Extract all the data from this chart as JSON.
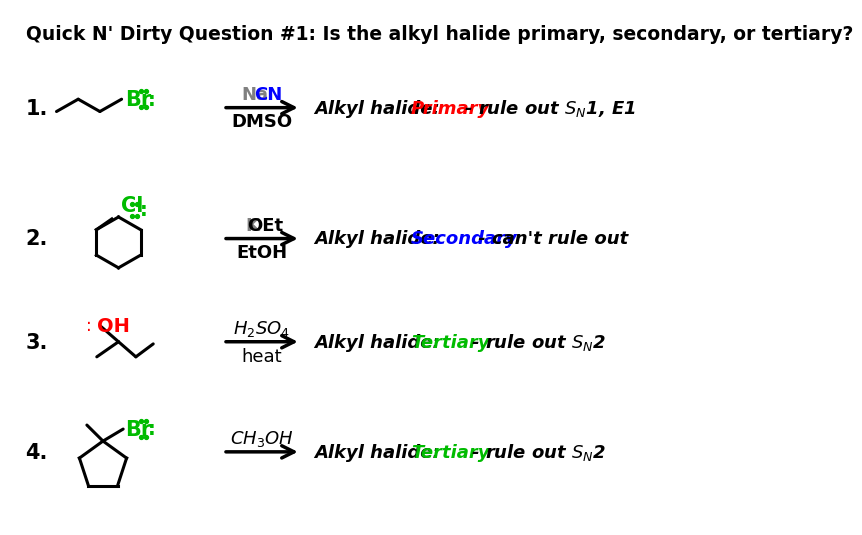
{
  "title": "Quick N' Dirty Question #1: Is the alkyl halide primary, secondary, or tertiary?",
  "title_fontsize": 13.5,
  "background_color": "#ffffff",
  "rows": [
    {
      "number": "1.",
      "reagent_above_parts": [
        {
          "text": "Na",
          "color": "#808080"
        },
        {
          "text": "CN",
          "color": "#0000ff"
        }
      ],
      "reagent_below": "DMSO",
      "result_type": "Primary",
      "result_type_color": "#ff0000",
      "result_desc": " - rule out $S_N$1, E1",
      "substrate_type": "primary_bromine",
      "halide": "Br",
      "halide_color": "#00bb00"
    },
    {
      "number": "2.",
      "reagent_above_parts": [
        {
          "text": "K",
          "color": "#808080"
        },
        {
          "text": "OEt",
          "color": "#000000"
        }
      ],
      "reagent_below": "EtOH",
      "result_type": "Secondary",
      "result_type_color": "#0000ff",
      "result_desc": " - can't rule out",
      "substrate_type": "secondary_chlorine",
      "halide": "Cl",
      "halide_color": "#00bb00"
    },
    {
      "number": "3.",
      "reagent_above": "$H_2SO_4$",
      "reagent_above_parts": [],
      "reagent_below": "heat",
      "reagent_below_normal": true,
      "result_type": "Tertiary",
      "result_type_color": "#00bb00",
      "result_desc": " - rule out $S_N$2",
      "substrate_type": "tertiary_OH",
      "halide": "OH",
      "halide_color": "#ff0000"
    },
    {
      "number": "4.",
      "reagent_above": "$CH_3OH$",
      "reagent_above_parts": [],
      "reagent_below": "",
      "result_type": "Tertiary",
      "result_type_color": "#00bb00",
      "result_desc": " - rule out $S_N$2",
      "substrate_type": "tertiary_bromine_cyclopentane",
      "halide": "Br",
      "halide_color": "#00bb00"
    }
  ]
}
